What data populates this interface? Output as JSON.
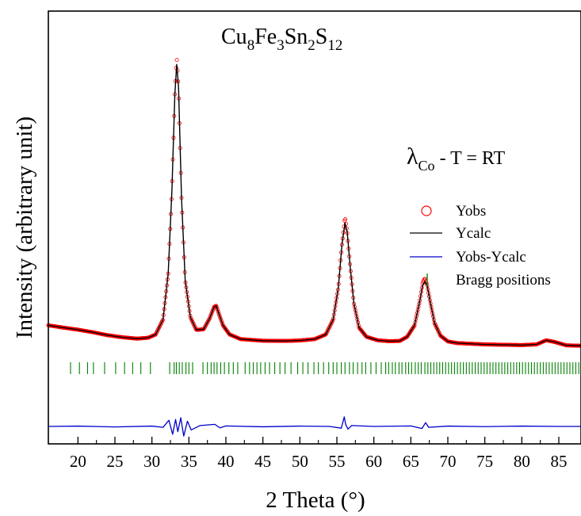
{
  "chart_data": {
    "type": "line",
    "title": "",
    "xlabel": "2 Theta (°)",
    "ylabel": "Intensity (arbitrary unit)",
    "xlim": [
      16,
      88
    ],
    "xticks": [
      20,
      25,
      30,
      35,
      40,
      45,
      50,
      55,
      60,
      65,
      70,
      75,
      80,
      85
    ],
    "yticks_shown": false,
    "grid": false,
    "legend_position": "right",
    "annotations": {
      "formula": {
        "base": [
          "Cu",
          "Fe",
          "Sn",
          "S"
        ],
        "subs": [
          "8",
          "3",
          "2",
          "12"
        ]
      },
      "condition": {
        "lambda": "λ",
        "lambda_sub": "Co",
        "rest": " - T = RT"
      }
    },
    "colors": {
      "obs": "#ff0000",
      "calc": "#000000",
      "diff": "#0000cc",
      "bragg": "#008000"
    },
    "series": [
      {
        "name": "Yobs",
        "style": "open-circle",
        "x": [
          16,
          18,
          20,
          22,
          24,
          26,
          28,
          29.5,
          30.5,
          31.5,
          32.2,
          32.7,
          33.1,
          33.35,
          33.6,
          34.0,
          34.5,
          35.2,
          36.0,
          37.0,
          37.8,
          38.4,
          38.7,
          39.0,
          39.6,
          40.5,
          42,
          45,
          48,
          50,
          52,
          53.5,
          54.5,
          55.2,
          55.7,
          56.1,
          56.4,
          56.8,
          57.3,
          58.0,
          59.0,
          60.5,
          62,
          63.5,
          64.5,
          65.5,
          66.2,
          66.6,
          66.9,
          67.2,
          67.6,
          68.2,
          69.0,
          70.0,
          70.5,
          71.2,
          73,
          75,
          78,
          80,
          82,
          83.3,
          84.5,
          86,
          88
        ],
        "y": [
          0.95,
          0.85,
          0.76,
          0.65,
          0.52,
          0.43,
          0.37,
          0.41,
          0.55,
          1.2,
          3.2,
          6.8,
          11.0,
          12.6,
          11.3,
          6.5,
          2.9,
          1.3,
          0.75,
          0.78,
          1.25,
          1.75,
          1.8,
          1.5,
          0.95,
          0.55,
          0.35,
          0.28,
          0.27,
          0.29,
          0.35,
          0.55,
          1.2,
          2.6,
          4.5,
          5.65,
          5.0,
          3.5,
          1.9,
          0.85,
          0.45,
          0.3,
          0.26,
          0.27,
          0.45,
          0.95,
          2.0,
          2.8,
          3.0,
          2.7,
          2.0,
          1.05,
          0.5,
          0.25,
          0.22,
          0.18,
          0.15,
          0.12,
          0.1,
          0.09,
          0.12,
          0.3,
          0.22,
          0.08,
          0.06
        ]
      },
      {
        "name": "Ycalc",
        "style": "line",
        "x": [
          16,
          18,
          20,
          22,
          24,
          26,
          28,
          29.5,
          30.5,
          31.5,
          32.2,
          32.7,
          33.1,
          33.35,
          33.6,
          34.0,
          34.5,
          35.2,
          36.0,
          37.0,
          37.8,
          38.4,
          38.7,
          39.0,
          39.6,
          40.5,
          42,
          45,
          48,
          50,
          52,
          53.5,
          54.5,
          55.2,
          55.7,
          56.1,
          56.4,
          56.8,
          57.3,
          58.0,
          59.0,
          60.5,
          62,
          63.5,
          64.5,
          65.5,
          66.2,
          66.6,
          66.9,
          67.2,
          67.6,
          68.2,
          69.0,
          70.0,
          70.5,
          71.2,
          73,
          75,
          78,
          80,
          82,
          83.3,
          84.5,
          86,
          88
        ],
        "y": [
          0.95,
          0.85,
          0.76,
          0.65,
          0.52,
          0.43,
          0.37,
          0.41,
          0.55,
          1.2,
          3.2,
          6.8,
          11.0,
          12.3,
          11.3,
          6.5,
          2.9,
          1.3,
          0.75,
          0.78,
          1.25,
          1.75,
          1.8,
          1.5,
          0.95,
          0.55,
          0.35,
          0.28,
          0.27,
          0.29,
          0.35,
          0.55,
          1.2,
          2.6,
          4.5,
          5.4,
          5.0,
          3.5,
          1.9,
          0.85,
          0.45,
          0.3,
          0.26,
          0.27,
          0.45,
          0.95,
          2.0,
          2.7,
          2.85,
          2.7,
          2.0,
          1.05,
          0.5,
          0.25,
          0.22,
          0.18,
          0.15,
          0.12,
          0.1,
          0.09,
          0.12,
          0.3,
          0.22,
          0.08,
          0.06
        ]
      },
      {
        "name": "Yobs-Ycalc",
        "style": "line",
        "x": [
          16,
          20,
          25,
          30,
          31.5,
          32.3,
          32.8,
          33.2,
          33.5,
          33.9,
          34.3,
          34.8,
          35.3,
          36.5,
          38.5,
          39.2,
          40,
          45,
          50,
          54,
          55.6,
          56.0,
          56.2,
          56.5,
          57,
          60,
          65,
          66.5,
          67.0,
          67.4,
          70,
          75,
          80,
          85,
          88
        ],
        "y": [
          0,
          0.02,
          -0.03,
          0.02,
          -0.05,
          0.35,
          -0.45,
          0.4,
          -0.3,
          0.5,
          -0.55,
          0.3,
          -0.2,
          0.05,
          0.12,
          -0.08,
          0.03,
          -0.02,
          0.02,
          0,
          -0.1,
          0.55,
          0.1,
          -0.15,
          0.05,
          0,
          0.03,
          -0.12,
          0.22,
          -0.05,
          0.02,
          -0.01,
          0.02,
          0,
          0
        ]
      }
    ],
    "bragg_positions": [
      19.0,
      20.2,
      21.3,
      22.1,
      23.6,
      25.1,
      26.3,
      27.4,
      28.5,
      29.8,
      32.4,
      33.0,
      33.3,
      33.7,
      34.1,
      34.6,
      35.0,
      35.5,
      36.9,
      37.5,
      38.0,
      38.4,
      38.8,
      39.3,
      39.8,
      40.4,
      41.0,
      41.6,
      42.6,
      43.2,
      43.7,
      44.2,
      44.7,
      45.3,
      45.9,
      46.6,
      47.3,
      48.0,
      48.8,
      49.7,
      50.4,
      51.1,
      51.9,
      52.5,
      53.2,
      53.9,
      54.5,
      55.0,
      55.6,
      56.1,
      56.7,
      57.2,
      57.8,
      58.4,
      58.9,
      59.6,
      60.3,
      61.0,
      61.6,
      62.0,
      62.5,
      62.9,
      63.4,
      63.8,
      64.3,
      64.7,
      65.1,
      65.6,
      66.0,
      66.4,
      66.9,
      67.3,
      67.7,
      68.1,
      68.5,
      68.9,
      69.3,
      69.7,
      70.1,
      70.5,
      70.9,
      71.3,
      71.7,
      72.1,
      72.5,
      72.9,
      73.3,
      73.7,
      74.1,
      74.5,
      74.9,
      75.3,
      75.7,
      76.1,
      76.5,
      76.9,
      77.3,
      77.7,
      78.1,
      78.5,
      78.9,
      79.3,
      79.7,
      80.1,
      80.5,
      80.9,
      81.3,
      81.7,
      82.1,
      82.5,
      82.9,
      83.3,
      83.7,
      84.1,
      84.5,
      84.9,
      85.3,
      85.7,
      86.1,
      86.5,
      86.9,
      87.3,
      87.7
    ],
    "legend": [
      "Yobs",
      "Ycalc",
      "Yobs-Ycalc",
      "Bragg positions"
    ]
  }
}
